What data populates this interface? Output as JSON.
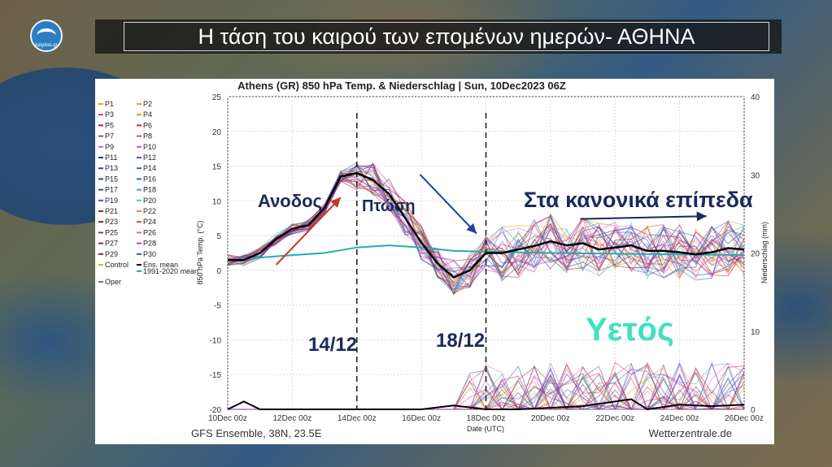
{
  "header": {
    "logo_text": "kaiydas.gr",
    "title": "Η τάση του καιρού των επομένων ημερών- ΑΘΗΝΑ"
  },
  "chart_data": {
    "type": "line",
    "title": "Athens  (GR)  850 hPa Temp. & Niederschlag | Sun, 10Dec2023 06Z",
    "xlabel": "Date (UTC)",
    "ylabel": "850 hPa Temp. (°C)",
    "y2label": "Niederschlag (mm)",
    "source_left": "GFS Ensemble, 38N, 23.5E",
    "source_right": "Wetterzentrale.de",
    "ylim": [
      -20,
      25
    ],
    "y2lim": [
      0,
      40
    ],
    "yticks": [
      25,
      20,
      15,
      10,
      5,
      0,
      -5,
      -10,
      -15,
      -20
    ],
    "y2ticks": [
      40,
      30,
      20,
      10,
      0
    ],
    "xlim_hours": [
      0,
      384
    ],
    "xticks": [
      "10Dec 00z",
      "12Dec 00z",
      "14Dec 00z",
      "16Dec 00z",
      "18Dec 00z",
      "20Dec 00z",
      "22Dec 00z",
      "24Dec 00z",
      "26Dec 00z"
    ],
    "legend": [
      {
        "name": "P1",
        "color": "#d4b000"
      },
      {
        "name": "P2",
        "color": "#e8a020"
      },
      {
        "name": "P3",
        "color": "#c04080"
      },
      {
        "name": "P4",
        "color": "#e0a000"
      },
      {
        "name": "P5",
        "color": "#a02070"
      },
      {
        "name": "P6",
        "color": "#d02060"
      },
      {
        "name": "P7",
        "color": "#c03090"
      },
      {
        "name": "P8",
        "color": "#e040b0"
      },
      {
        "name": "P9",
        "color": "#c060c0"
      },
      {
        "name": "P10",
        "color": "#d050d0"
      },
      {
        "name": "P11",
        "color": "#303090"
      },
      {
        "name": "P12",
        "color": "#5050c0"
      },
      {
        "name": "P13",
        "color": "#404090"
      },
      {
        "name": "P14",
        "color": "#3060c0"
      },
      {
        "name": "P15",
        "color": "#304090"
      },
      {
        "name": "P16",
        "color": "#2070c0"
      },
      {
        "name": "P17",
        "color": "#3050a0"
      },
      {
        "name": "P18",
        "color": "#40a0d0"
      },
      {
        "name": "P19",
        "color": "#4060a0"
      },
      {
        "name": "P20",
        "color": "#60c0d0"
      },
      {
        "name": "P21",
        "color": "#803030"
      },
      {
        "name": "P22",
        "color": "#e09040"
      },
      {
        "name": "P23",
        "color": "#902020"
      },
      {
        "name": "P24",
        "color": "#d05020"
      },
      {
        "name": "P25",
        "color": "#a03050"
      },
      {
        "name": "P26",
        "color": "#e060c0"
      },
      {
        "name": "P27",
        "color": "#a02040"
      },
      {
        "name": "P28",
        "color": "#c040c0"
      },
      {
        "name": "P29",
        "color": "#802060"
      },
      {
        "name": "P30",
        "color": "#6040a0"
      },
      {
        "name": "Control",
        "color": "#c0c000"
      },
      {
        "name": "Ens. mean",
        "color": "#000000"
      },
      {
        "name": "Oper",
        "color": "#c040a0"
      },
      {
        "name": "1991-2020 mean",
        "color": "#20b0b0"
      }
    ],
    "ens_mean": {
      "x": [
        0,
        12,
        24,
        36,
        48,
        60,
        72,
        84,
        96,
        108,
        120,
        132,
        144,
        156,
        168,
        180,
        192,
        204,
        216,
        228,
        240,
        252,
        264,
        276,
        288,
        300,
        312,
        324,
        336,
        348,
        360,
        372,
        384
      ],
      "y": [
        1.5,
        1.5,
        2.5,
        4.5,
        6,
        6.5,
        9,
        13.5,
        14,
        13,
        11,
        7.5,
        4,
        1,
        -1,
        0,
        2.5,
        2.5,
        3,
        3.5,
        4.2,
        3.6,
        3.9,
        3,
        3.3,
        3.6,
        2.8,
        2.8,
        2.6,
        2.3,
        2.6,
        3.2,
        3.0
      ]
    },
    "climate_mean": {
      "x": [
        0,
        48,
        72,
        96,
        120,
        144,
        168,
        192,
        240,
        288,
        336,
        384
      ],
      "y": [
        1.5,
        2.2,
        2.5,
        3.3,
        3.6,
        3.3,
        2.8,
        2.7,
        2.5,
        2.4,
        2.3,
        2.2
      ]
    },
    "precip_mean": {
      "x": [
        0,
        12,
        24,
        48,
        96,
        144,
        168,
        192,
        216,
        264,
        300,
        312,
        336,
        360,
        384
      ],
      "y": [
        0,
        1,
        0,
        0,
        0,
        0,
        0.5,
        0,
        0,
        0.4,
        1.3,
        0,
        0.6,
        0.4,
        0.6
      ]
    },
    "members_overlay_note": "",
    "annotations": [
      {
        "text": "Ανοδος",
        "color": "#1a2a5a"
      },
      {
        "text": "Πτώση",
        "color": "#1a2a5a"
      },
      {
        "text": "Στα κανονικά επίπεδα",
        "color": "#1a2a5a"
      },
      {
        "text": "14/12",
        "color": "#1a2a5a"
      },
      {
        "text": "18/12",
        "color": "#1a2a5a"
      },
      {
        "text": "Υετός",
        "color": "#40e0c0"
      }
    ],
    "vlines_hours": [
      96,
      192
    ]
  }
}
